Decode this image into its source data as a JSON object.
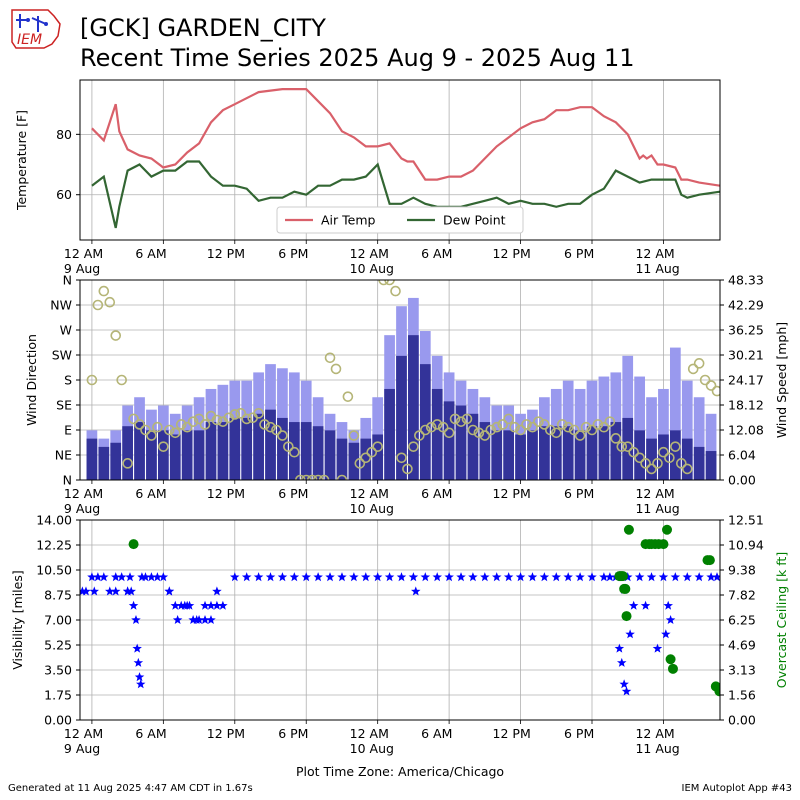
{
  "header": {
    "logo_text": "IEM",
    "title": "[GCK] GARDEN_CITY",
    "subtitle": "Recent Time Series 2025 Aug 9 - 2025 Aug 11"
  },
  "footer": {
    "left": "Generated at 11 Aug 2025 4:47 AM CDT in 1.67s",
    "right": "IEM Autoplot App #43"
  },
  "chart_data": [
    {
      "type": "line",
      "ylabel": "Temperature [F]",
      "xlim": [
        -1,
        52.75
      ],
      "ylim": [
        45,
        98
      ],
      "yticks": [
        60,
        80
      ],
      "xticks": [
        {
          "x": 0,
          "label": "12 AM",
          "date": "9 Aug"
        },
        {
          "x": 6,
          "label": "6 AM"
        },
        {
          "x": 12,
          "label": "12 PM"
        },
        {
          "x": 18,
          "label": "6 PM"
        },
        {
          "x": 24,
          "label": "12 AM",
          "date": "10 Aug"
        },
        {
          "x": 30,
          "label": "6 AM"
        },
        {
          "x": 36,
          "label": "12 PM"
        },
        {
          "x": 42,
          "label": "6 PM"
        },
        {
          "x": 48,
          "label": "12 AM",
          "date": "11 Aug"
        }
      ],
      "x_unit": "hours since 9 Aug 12 AM",
      "grid": true,
      "legend_position": "bottom-center",
      "series": [
        {
          "name": "Air Temp",
          "color": "#d9606a",
          "x": [
            0,
            1,
            2,
            2.3,
            3,
            4,
            5,
            6,
            7,
            8,
            9,
            10,
            11,
            12,
            14,
            16,
            18,
            20,
            21,
            22,
            23,
            24,
            25,
            26,
            26.5,
            27,
            28,
            29,
            30,
            31,
            32,
            33,
            34,
            35,
            36,
            37,
            38,
            39,
            40,
            41,
            42,
            43,
            44,
            45,
            46,
            46.3,
            46.6,
            47,
            47.5,
            48,
            49,
            49.5,
            50,
            51,
            52.75
          ],
          "y": [
            82,
            78,
            90,
            81,
            75,
            73,
            72,
            69,
            70,
            74,
            77,
            84,
            88,
            90,
            94,
            95,
            95,
            87,
            81,
            79,
            76,
            76,
            77,
            72,
            71,
            71,
            65,
            65,
            66,
            66,
            68,
            72,
            76,
            79,
            82,
            84,
            85,
            88,
            88,
            89,
            89,
            86,
            84,
            80,
            72,
            73,
            72,
            73,
            70,
            70,
            69,
            65,
            65,
            64,
            63
          ]
        },
        {
          "name": "Dew Point",
          "color": "#336633",
          "x": [
            0,
            1,
            2,
            2.3,
            3,
            4,
            5,
            6,
            7,
            8,
            9,
            10,
            11,
            12,
            13,
            14,
            15,
            16,
            17,
            18,
            19,
            20,
            21,
            22,
            23,
            24,
            25,
            26,
            27,
            28,
            29,
            30,
            31,
            32,
            33,
            34,
            35,
            36,
            37,
            38,
            39,
            40,
            41,
            42,
            43,
            44,
            45,
            45.5,
            46,
            47,
            48,
            49,
            49.5,
            50,
            51,
            52.75
          ],
          "y": [
            63,
            66,
            49,
            56,
            68,
            70,
            66,
            68,
            68,
            71,
            71,
            66,
            63,
            63,
            62,
            58,
            59,
            59,
            61,
            60,
            63,
            63,
            65,
            65,
            66,
            70,
            57,
            57,
            59,
            57,
            56,
            56,
            56,
            57,
            58,
            59,
            57,
            58,
            57,
            57,
            56,
            57,
            57,
            60,
            62,
            68,
            66,
            65,
            64,
            65,
            65,
            65,
            60,
            59,
            60,
            61
          ]
        }
      ]
    },
    {
      "type": "bar",
      "ylabel": "Wind Direction",
      "y2label": "Wind Speed [mph]",
      "xlim": [
        -1,
        52.75
      ],
      "ylim": [
        0,
        360
      ],
      "yticks": [
        {
          "v": 0,
          "label": "N"
        },
        {
          "v": 45,
          "label": "NE"
        },
        {
          "v": 90,
          "label": "E"
        },
        {
          "v": 135,
          "label": "SE"
        },
        {
          "v": 180,
          "label": "S"
        },
        {
          "v": 225,
          "label": "SW"
        },
        {
          "v": 270,
          "label": "W"
        },
        {
          "v": 315,
          "label": "NW"
        },
        {
          "v": 360,
          "label": "N"
        }
      ],
      "y2lim": [
        0,
        48.33
      ],
      "y2ticks": [
        "0.00",
        "6.04",
        "12.08",
        "18.12",
        "24.17",
        "30.21",
        "36.25",
        "42.29",
        "48.33"
      ],
      "grid": true,
      "series": [
        {
          "name": "Wind Speed",
          "color": "#333399",
          "gust_color": "#9999ee",
          "x": [
            0,
            1,
            2,
            3,
            4,
            5,
            6,
            7,
            8,
            9,
            10,
            11,
            12,
            13,
            14,
            15,
            16,
            17,
            18,
            19,
            20,
            21,
            22,
            23,
            24,
            25,
            26,
            27,
            28,
            29,
            30,
            31,
            32,
            33,
            34,
            35,
            36,
            37,
            38,
            39,
            40,
            41,
            42,
            43,
            44,
            45,
            46,
            47,
            48,
            49,
            50,
            51,
            52
          ],
          "y": [
            10,
            8,
            9,
            13,
            14,
            12,
            12,
            11,
            12,
            12,
            14,
            14,
            15,
            15,
            16,
            17,
            15,
            14,
            14,
            13,
            12,
            10,
            9,
            10,
            11,
            22,
            30,
            35,
            28,
            22,
            19,
            18,
            16,
            14,
            12,
            12,
            11,
            12,
            13,
            13,
            13,
            12,
            13,
            13,
            14,
            15,
            12,
            10,
            11,
            12,
            10,
            8,
            7
          ],
          "gust": [
            12,
            10,
            12,
            18,
            20,
            17,
            18,
            16,
            18,
            20,
            22,
            23,
            24,
            24,
            26,
            28,
            27,
            26,
            24,
            20,
            16,
            14,
            12,
            15,
            20,
            35,
            42,
            44,
            36,
            30,
            26,
            24,
            22,
            20,
            18,
            18,
            16,
            17,
            20,
            22,
            24,
            22,
            24,
            25,
            26,
            30,
            25,
            20,
            22,
            32,
            24,
            20,
            16
          ]
        },
        {
          "name": "Wind Direction",
          "color": "#b5b577",
          "x": [
            0,
            0.5,
            1,
            1.5,
            2,
            2.5,
            3,
            3.5,
            4,
            4.5,
            5,
            5.5,
            6,
            6.5,
            7,
            7.5,
            8,
            8.5,
            9,
            9.5,
            10,
            10.5,
            11,
            11.5,
            12,
            12.5,
            13,
            13.5,
            14,
            14.5,
            15,
            15.5,
            16,
            16.5,
            17,
            17.5,
            18,
            18.5,
            19,
            19.5,
            20,
            20.5,
            21,
            21.5,
            22,
            22.5,
            23,
            23.5,
            24,
            24.5,
            25,
            25.5,
            26,
            26.5,
            27,
            27.5,
            28,
            28.5,
            29,
            29.5,
            30,
            30.5,
            31,
            31.5,
            32,
            32.5,
            33,
            33.5,
            34,
            34.5,
            35,
            35.5,
            36,
            36.5,
            37,
            37.5,
            38,
            38.5,
            39,
            39.5,
            40,
            40.5,
            41,
            41.5,
            42,
            42.5,
            43,
            43.5,
            44,
            44.5,
            45,
            45.5,
            46,
            46.5,
            47,
            47.5,
            48,
            48.5,
            49,
            49.5,
            50,
            50.5,
            51,
            51.5,
            52,
            52.5
          ],
          "y": [
            180,
            315,
            340,
            320,
            260,
            180,
            30,
            110,
            100,
            90,
            80,
            95,
            60,
            90,
            85,
            100,
            95,
            105,
            110,
            100,
            115,
            108,
            105,
            112,
            118,
            120,
            110,
            112,
            120,
            100,
            95,
            90,
            80,
            60,
            50,
            0,
            0,
            0,
            0,
            0,
            220,
            200,
            0,
            150,
            80,
            30,
            40,
            50,
            60,
            360,
            360,
            340,
            40,
            20,
            60,
            80,
            90,
            95,
            100,
            95,
            85,
            110,
            105,
            110,
            90,
            85,
            80,
            90,
            95,
            100,
            110,
            95,
            90,
            100,
            95,
            105,
            100,
            90,
            85,
            100,
            95,
            90,
            80,
            95,
            90,
            100,
            95,
            105,
            75,
            60,
            60,
            50,
            40,
            30,
            20,
            30,
            50,
            40,
            60,
            30,
            20,
            200,
            210,
            180,
            170,
            160
          ]
        }
      ]
    },
    {
      "type": "scatter",
      "ylabel": "Visibility [miles]",
      "y2label": "Overcast Ceiling [k ft]",
      "xlabel": "Plot Time Zone: America/Chicago",
      "xlim": [
        -1,
        52.75
      ],
      "ylim": [
        0,
        14
      ],
      "yticks": [
        "0.00",
        "1.75",
        "3.50",
        "5.25",
        "7.00",
        "8.75",
        "10.50",
        "12.25",
        "14.00"
      ],
      "y2lim": [
        0,
        12.51
      ],
      "y2ticks": [
        "0.00",
        "1.56",
        "3.13",
        "4.69",
        "6.25",
        "7.82",
        "9.38",
        "10.94",
        "12.51"
      ],
      "grid": true,
      "series": [
        {
          "name": "Visibility",
          "color": "#0000ff",
          "marker": "star",
          "x": [
            -0.8,
            0,
            0.5,
            1,
            1.5,
            2,
            2.5,
            3,
            3.2,
            3.5,
            3.7,
            3.8,
            3.9,
            4,
            4.1,
            4.2,
            4.5,
            5,
            5.5,
            6,
            6.5,
            7,
            7.5,
            8,
            8.5,
            9,
            9.5,
            10,
            10.5,
            11,
            12,
            13,
            14,
            15,
            16,
            17,
            18,
            19,
            20,
            21,
            22,
            23,
            24,
            25,
            26,
            27,
            28,
            29,
            30,
            31,
            32,
            33,
            34,
            35,
            36,
            37,
            38,
            39,
            40,
            41,
            42,
            43,
            43.5,
            44,
            44.3,
            44.5,
            44.7,
            44.9,
            45,
            45.2,
            45.5,
            46,
            46.5,
            47,
            47.5,
            48,
            48.2,
            48.4,
            48.6,
            49,
            50,
            51,
            52,
            52.5,
            -0.5,
            0.2,
            2,
            3,
            3.3,
            6.5,
            7.2,
            7.8,
            8.2,
            8.8,
            9.5,
            10,
            10.5,
            27.2,
            44.7
          ],
          "y": [
            9,
            10,
            10,
            10,
            9,
            10,
            10,
            9,
            10,
            8,
            7,
            5,
            4,
            3,
            2.5,
            10,
            10,
            10,
            10,
            10,
            9,
            8,
            8,
            8,
            7,
            7,
            7,
            7,
            8,
            8,
            10,
            10,
            10,
            10,
            10,
            10,
            10,
            10,
            10,
            10,
            10,
            10,
            10,
            10,
            10,
            10,
            10,
            10,
            10,
            10,
            10,
            10,
            10,
            10,
            10,
            10,
            10,
            10,
            10,
            10,
            10,
            10,
            10,
            10,
            5,
            4,
            2.5,
            2,
            10,
            6,
            8,
            10,
            8,
            10,
            5,
            10,
            6,
            8,
            7,
            10,
            10,
            10,
            10,
            10,
            9,
            9,
            9,
            9,
            9,
            9,
            7,
            8,
            8,
            7,
            8,
            8,
            9,
            9,
            9.1
          ]
        },
        {
          "name": "Overcast Ceiling",
          "color": "#008000",
          "marker": "circle",
          "x": [
            3.5,
            44.3,
            44.4,
            44.5,
            44.6,
            44.7,
            44.8,
            44.9,
            45.1,
            46.5,
            46.8,
            47,
            47.3,
            47.6,
            48,
            48.3,
            48.6,
            48.8,
            52.4,
            52.6,
            52.7,
            51.7,
            51.9
          ],
          "y": [
            11,
            9,
            9,
            9,
            9,
            8.2,
            8.2,
            6.5,
            11.9,
            11,
            11,
            11,
            11,
            11,
            11,
            11.9,
            3.8,
            3.2,
            2.1,
            2,
            1.8,
            10,
            10
          ]
        }
      ]
    }
  ]
}
